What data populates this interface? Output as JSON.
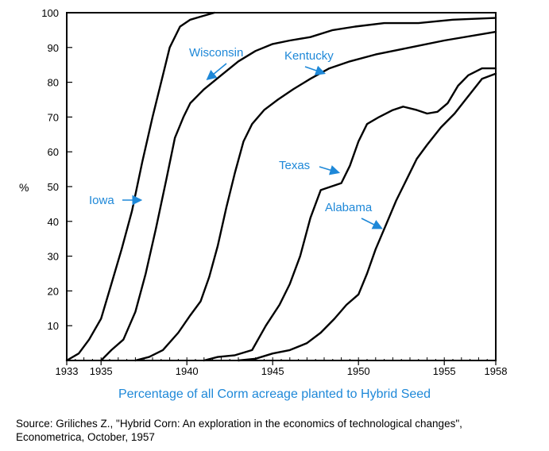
{
  "colors": {
    "curve": "#000000",
    "label": "#1e88d8"
  },
  "chart_data": {
    "type": "line",
    "title": "",
    "xlabel": "Percentage of all Corm acreage planted to Hybrid Seed",
    "ylabel": "%",
    "xlim": [
      1933,
      1958
    ],
    "ylim": [
      0,
      100
    ],
    "x_ticks": [
      1933,
      1935,
      1940,
      1945,
      1950,
      1955,
      1958
    ],
    "y_ticks": [
      10,
      20,
      30,
      40,
      50,
      60,
      70,
      80,
      90,
      100
    ],
    "grid": false,
    "series": [
      {
        "name": "Iowa",
        "points": [
          [
            1933,
            0
          ],
          [
            1933.7,
            2
          ],
          [
            1934.3,
            6
          ],
          [
            1935,
            12
          ],
          [
            1935.6,
            22
          ],
          [
            1936.2,
            32
          ],
          [
            1936.8,
            43
          ],
          [
            1937.4,
            57
          ],
          [
            1938,
            70
          ],
          [
            1938.6,
            82
          ],
          [
            1939,
            90
          ],
          [
            1939.6,
            96
          ],
          [
            1940.2,
            98
          ],
          [
            1940.9,
            99
          ],
          [
            1941.6,
            100
          ]
        ]
      },
      {
        "name": "Wisconsin",
        "points": [
          [
            1935,
            0
          ],
          [
            1935.6,
            3
          ],
          [
            1936.3,
            6
          ],
          [
            1937,
            14
          ],
          [
            1937.6,
            25
          ],
          [
            1938.2,
            38
          ],
          [
            1938.8,
            52
          ],
          [
            1939.3,
            64
          ],
          [
            1939.8,
            70
          ],
          [
            1940.2,
            74
          ],
          [
            1941,
            78
          ],
          [
            1942,
            82
          ],
          [
            1943,
            86
          ],
          [
            1944,
            89
          ],
          [
            1945,
            91
          ],
          [
            1946,
            92
          ],
          [
            1947.2,
            93
          ],
          [
            1948.5,
            95
          ],
          [
            1949.8,
            96
          ],
          [
            1951.5,
            97
          ],
          [
            1953.5,
            97
          ],
          [
            1955.5,
            98
          ],
          [
            1958,
            98.5
          ]
        ]
      },
      {
        "name": "Kentucky",
        "points": [
          [
            1937,
            0
          ],
          [
            1937.8,
            1
          ],
          [
            1938.6,
            3
          ],
          [
            1939.5,
            8
          ],
          [
            1940.2,
            13
          ],
          [
            1940.8,
            17
          ],
          [
            1941.3,
            24
          ],
          [
            1941.8,
            33
          ],
          [
            1942.3,
            44
          ],
          [
            1942.8,
            54
          ],
          [
            1943.3,
            63
          ],
          [
            1943.8,
            68
          ],
          [
            1944.5,
            72
          ],
          [
            1945.3,
            75
          ],
          [
            1946.2,
            78
          ],
          [
            1947.2,
            81
          ],
          [
            1948.3,
            84
          ],
          [
            1949.5,
            86
          ],
          [
            1951,
            88
          ],
          [
            1953,
            90
          ],
          [
            1955,
            92
          ],
          [
            1958,
            94.5
          ]
        ]
      },
      {
        "name": "Texas",
        "points": [
          [
            1941,
            0
          ],
          [
            1941.8,
            1
          ],
          [
            1942.8,
            1.5
          ],
          [
            1943.8,
            3
          ],
          [
            1944.6,
            10
          ],
          [
            1945.4,
            16
          ],
          [
            1946,
            22
          ],
          [
            1946.6,
            30
          ],
          [
            1947.2,
            41
          ],
          [
            1947.8,
            49
          ],
          [
            1948.4,
            50
          ],
          [
            1949,
            51
          ],
          [
            1949.5,
            56
          ],
          [
            1950,
            63
          ],
          [
            1950.5,
            68
          ],
          [
            1951.2,
            70
          ],
          [
            1952,
            72
          ],
          [
            1952.6,
            73
          ],
          [
            1953.4,
            72
          ],
          [
            1954,
            71
          ],
          [
            1954.6,
            71.5
          ],
          [
            1955.2,
            74
          ],
          [
            1955.8,
            79
          ],
          [
            1956.4,
            82
          ],
          [
            1957.2,
            84
          ],
          [
            1958,
            84
          ]
        ]
      },
      {
        "name": "Alabama",
        "points": [
          [
            1943,
            0
          ],
          [
            1944,
            0.5
          ],
          [
            1945,
            2
          ],
          [
            1946,
            3
          ],
          [
            1947,
            5
          ],
          [
            1947.8,
            8
          ],
          [
            1948.6,
            12
          ],
          [
            1949.3,
            16
          ],
          [
            1950,
            19
          ],
          [
            1950.5,
            25
          ],
          [
            1951,
            32
          ],
          [
            1951.6,
            39
          ],
          [
            1952.2,
            46
          ],
          [
            1952.8,
            52
          ],
          [
            1953.4,
            58
          ],
          [
            1954,
            62
          ],
          [
            1954.8,
            67
          ],
          [
            1955.6,
            71
          ],
          [
            1956.4,
            76
          ],
          [
            1957.2,
            81
          ],
          [
            1958,
            82.5
          ]
        ]
      }
    ],
    "annotations": [
      {
        "text": "Iowa",
        "series": "Iowa"
      },
      {
        "text": "Wisconsin",
        "series": "Wisconsin"
      },
      {
        "text": "Kentucky",
        "series": "Kentucky"
      },
      {
        "text": "Texas",
        "series": "Texas"
      },
      {
        "text": "Alabama",
        "series": "Alabama"
      }
    ]
  },
  "source_line1": "Source: Griliches Z., \"Hybrid Corn: An exploration in the economics of technological changes\",",
  "source_line2": "Econometrica, October, 1957"
}
